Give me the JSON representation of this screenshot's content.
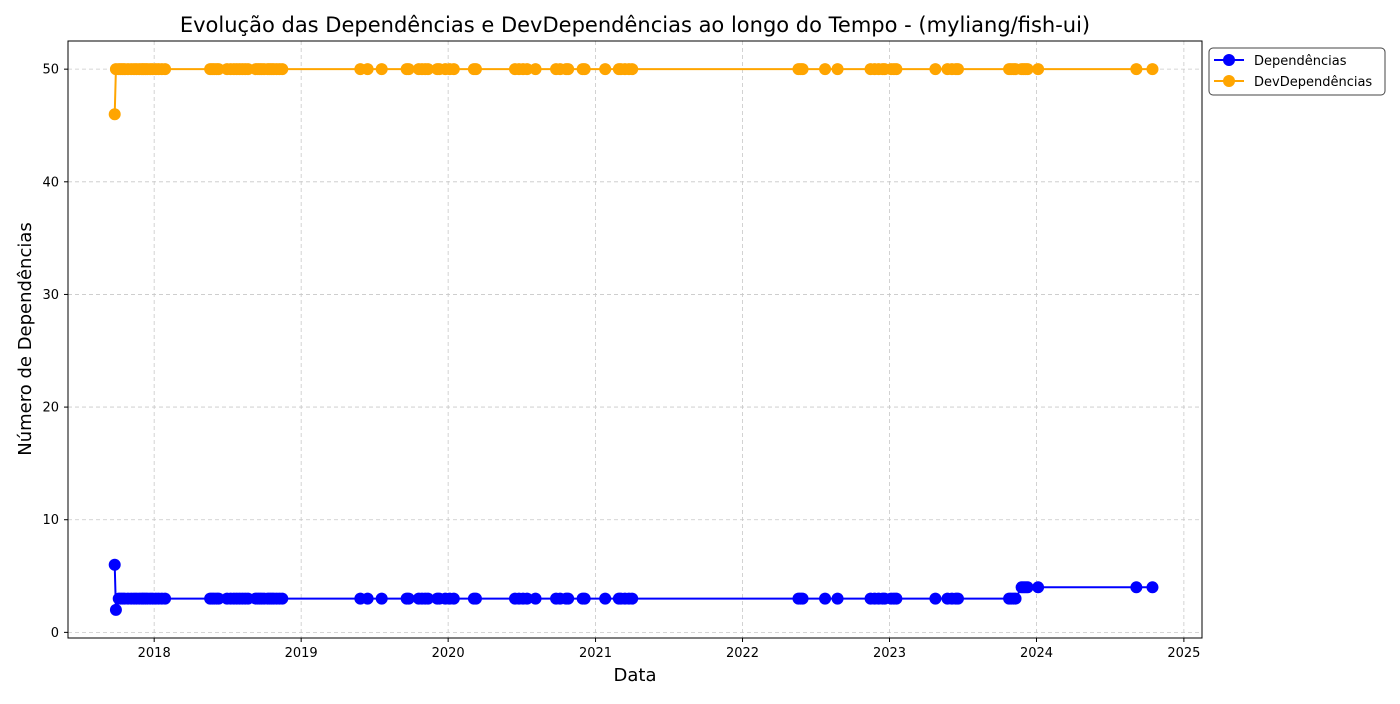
{
  "chart_data": {
    "type": "line",
    "title": "Evolução das Dependências e DevDependências ao longo do Tempo - (myliang/fish-ui)",
    "xlabel": "Data",
    "ylabel": "Número de Dependências",
    "xlim": [
      "2017-06-01",
      "2025-02-15"
    ],
    "ylim": [
      -0.5,
      52.5
    ],
    "x_ticks": [
      "2018",
      "2019",
      "2020",
      "2021",
      "2022",
      "2023",
      "2024",
      "2025"
    ],
    "y_ticks": [
      0,
      10,
      20,
      30,
      40,
      50
    ],
    "grid": true,
    "legend_position": "outside-top-right",
    "series": [
      {
        "name": "Dependências",
        "color": "#0000ff",
        "x": [
          "2017-09-25",
          "2017-09-28",
          "2017-10-05",
          "2017-10-10",
          "2017-10-15",
          "2017-10-20",
          "2017-10-28",
          "2017-11-05",
          "2017-11-12",
          "2017-11-18",
          "2017-11-25",
          "2017-12-01",
          "2017-12-05",
          "2017-12-10",
          "2017-12-15",
          "2017-12-22",
          "2017-12-28",
          "2018-01-05",
          "2018-01-12",
          "2018-01-20",
          "2018-01-28",
          "2018-05-20",
          "2018-05-25",
          "2018-05-30",
          "2018-06-05",
          "2018-06-10",
          "2018-07-01",
          "2018-07-10",
          "2018-07-18",
          "2018-07-25",
          "2018-08-01",
          "2018-08-08",
          "2018-08-15",
          "2018-08-22",
          "2018-09-10",
          "2018-09-15",
          "2018-09-20",
          "2018-09-25",
          "2018-10-01",
          "2018-10-10",
          "2018-10-15",
          "2018-10-20",
          "2018-10-25",
          "2018-11-01",
          "2018-11-08",
          "2018-11-15",
          "2019-05-28",
          "2019-06-15",
          "2019-07-20",
          "2019-09-20",
          "2019-09-25",
          "2019-10-20",
          "2019-10-28",
          "2019-11-05",
          "2019-11-12",
          "2019-12-05",
          "2019-12-10",
          "2019-12-25",
          "2020-01-05",
          "2020-01-15",
          "2020-03-05",
          "2020-03-10",
          "2020-06-15",
          "2020-06-25",
          "2020-07-05",
          "2020-07-15",
          "2020-08-05",
          "2020-09-25",
          "2020-10-05",
          "2020-10-20",
          "2020-10-25",
          "2020-11-30",
          "2020-12-05",
          "2021-01-25",
          "2021-02-28",
          "2021-03-05",
          "2021-03-15",
          "2021-03-25",
          "2021-04-02",
          "2022-05-20",
          "2022-05-25",
          "2022-05-30",
          "2022-07-25",
          "2022-08-25",
          "2022-11-15",
          "2022-11-25",
          "2022-12-05",
          "2022-12-15",
          "2022-12-20",
          "2023-01-05",
          "2023-01-12",
          "2023-01-18",
          "2023-04-25",
          "2023-05-25",
          "2023-06-05",
          "2023-06-15",
          "2023-06-20",
          "2023-10-25",
          "2023-10-30",
          "2023-11-05",
          "2023-11-10",
          "2023-11-25",
          "2023-11-30",
          "2023-12-05",
          "2023-12-10",
          "2024-01-05",
          "2024-09-05",
          "2024-10-15"
        ],
        "y": [
          6,
          2,
          3,
          3,
          3,
          3,
          3,
          3,
          3,
          3,
          3,
          3,
          3,
          3,
          3,
          3,
          3,
          3,
          3,
          3,
          3,
          3,
          3,
          3,
          3,
          3,
          3,
          3,
          3,
          3,
          3,
          3,
          3,
          3,
          3,
          3,
          3,
          3,
          3,
          3,
          3,
          3,
          3,
          3,
          3,
          3,
          3,
          3,
          3,
          3,
          3,
          3,
          3,
          3,
          3,
          3,
          3,
          3,
          3,
          3,
          3,
          3,
          3,
          3,
          3,
          3,
          3,
          3,
          3,
          3,
          3,
          3,
          3,
          3,
          3,
          3,
          3,
          3,
          3,
          3,
          3,
          3,
          3,
          3,
          3,
          3,
          3,
          3,
          3,
          3,
          3,
          3,
          3,
          3,
          3,
          3,
          3,
          3,
          3,
          3,
          3,
          4,
          4,
          4,
          4,
          4,
          4,
          4
        ]
      },
      {
        "name": "DevDependências",
        "color": "#ffa500",
        "x": [
          "2017-09-25",
          "2017-09-28",
          "2017-10-05",
          "2017-10-10",
          "2017-10-15",
          "2017-10-20",
          "2017-10-28",
          "2017-11-05",
          "2017-11-12",
          "2017-11-18",
          "2017-11-25",
          "2017-12-01",
          "2017-12-05",
          "2017-12-10",
          "2017-12-15",
          "2017-12-22",
          "2017-12-28",
          "2018-01-05",
          "2018-01-12",
          "2018-01-20",
          "2018-01-28",
          "2018-05-20",
          "2018-05-25",
          "2018-05-30",
          "2018-06-05",
          "2018-06-10",
          "2018-07-01",
          "2018-07-10",
          "2018-07-18",
          "2018-07-25",
          "2018-08-01",
          "2018-08-08",
          "2018-08-15",
          "2018-08-22",
          "2018-09-10",
          "2018-09-15",
          "2018-09-20",
          "2018-09-25",
          "2018-10-01",
          "2018-10-10",
          "2018-10-15",
          "2018-10-20",
          "2018-10-25",
          "2018-11-01",
          "2018-11-08",
          "2018-11-15",
          "2019-05-28",
          "2019-06-15",
          "2019-07-20",
          "2019-09-20",
          "2019-09-25",
          "2019-10-20",
          "2019-10-28",
          "2019-11-05",
          "2019-11-12",
          "2019-12-05",
          "2019-12-10",
          "2019-12-25",
          "2020-01-05",
          "2020-01-15",
          "2020-03-05",
          "2020-03-10",
          "2020-06-15",
          "2020-06-25",
          "2020-07-05",
          "2020-07-15",
          "2020-08-05",
          "2020-09-25",
          "2020-10-05",
          "2020-10-20",
          "2020-10-25",
          "2020-11-30",
          "2020-12-05",
          "2021-01-25",
          "2021-02-28",
          "2021-03-05",
          "2021-03-15",
          "2021-03-25",
          "2021-04-02",
          "2022-05-20",
          "2022-05-25",
          "2022-05-30",
          "2022-07-25",
          "2022-08-25",
          "2022-11-15",
          "2022-11-25",
          "2022-12-05",
          "2022-12-15",
          "2022-12-20",
          "2023-01-05",
          "2023-01-12",
          "2023-01-18",
          "2023-04-25",
          "2023-05-25",
          "2023-06-05",
          "2023-06-15",
          "2023-06-20",
          "2023-10-25",
          "2023-10-30",
          "2023-11-05",
          "2023-11-10",
          "2023-11-25",
          "2023-11-30",
          "2023-12-05",
          "2023-12-10",
          "2024-01-05",
          "2024-09-05",
          "2024-10-15"
        ],
        "y": [
          46,
          50,
          50,
          50,
          50,
          50,
          50,
          50,
          50,
          50,
          50,
          50,
          50,
          50,
          50,
          50,
          50,
          50,
          50,
          50,
          50,
          50,
          50,
          50,
          50,
          50,
          50,
          50,
          50,
          50,
          50,
          50,
          50,
          50,
          50,
          50,
          50,
          50,
          50,
          50,
          50,
          50,
          50,
          50,
          50,
          50,
          50,
          50,
          50,
          50,
          50,
          50,
          50,
          50,
          50,
          50,
          50,
          50,
          50,
          50,
          50,
          50,
          50,
          50,
          50,
          50,
          50,
          50,
          50,
          50,
          50,
          50,
          50,
          50,
          50,
          50,
          50,
          50,
          50,
          50,
          50,
          50,
          50,
          50,
          50,
          50,
          50,
          50,
          50,
          50,
          50,
          50,
          50,
          50,
          50,
          50,
          50,
          50,
          50,
          50,
          50,
          50,
          50,
          50,
          50,
          50,
          50,
          50
        ]
      }
    ]
  }
}
